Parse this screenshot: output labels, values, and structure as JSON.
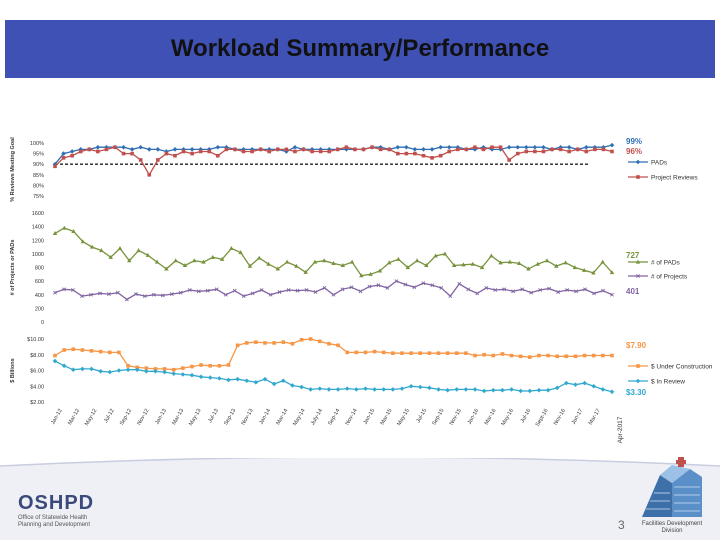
{
  "title": "Workload Summary/Performance",
  "page_number": "3",
  "logo": {
    "name": "OSHPD",
    "sub1": "Office of Statewide Health",
    "sub2": "Planning and Development"
  },
  "division": {
    "line1": "Facilities Development",
    "line2": "Division"
  },
  "colors": {
    "title_bar": "#3f51b5",
    "pads": "#2f6fb3",
    "reviews": "#c0504d",
    "num_pads": "#77933c",
    "num_projects": "#8064a2",
    "construction": "#f79646",
    "in_review": "#31a9cf",
    "goal": "#222222"
  },
  "axis": {
    "x_ticks": [
      "Jan-12",
      "Mar-12",
      "May-12",
      "Jul-12",
      "Sep-12",
      "Nov-12",
      "Jan-13",
      "Mar-13",
      "May-13",
      "Jul-13",
      "Sep-13",
      "Nov-13",
      "Jan-14",
      "Mar-14",
      "May-14",
      "July-14",
      "Sep-14",
      "Nov-14",
      "Jan-15",
      "Mar-15",
      "May-15",
      "Jul-15",
      "Sep-15",
      "Nov-15",
      "Jan-16",
      "Mar-16",
      "May-16",
      "Jul-16",
      "Sept-16",
      "Nov-16",
      "Jan-17",
      "Mar-17"
    ],
    "x_end": "Apr-2017"
  },
  "chart_data": [
    {
      "type": "line",
      "ylabel": "% Reviews Meeting Goal",
      "ylim": [
        75,
        100
      ],
      "y_ticks": [
        "100%",
        "95%",
        "90%",
        "85%",
        "80%",
        "75%"
      ],
      "goal_value": 90,
      "series": [
        {
          "name": "PADs",
          "end_label": "99%",
          "values": [
            90,
            95,
            96,
            97,
            97,
            98,
            98,
            98,
            98,
            97,
            98,
            97,
            97,
            96,
            97,
            97,
            97,
            97,
            97,
            98,
            98,
            97,
            97,
            97,
            97,
            97,
            97,
            96,
            98,
            97,
            97,
            97,
            97,
            97,
            97,
            97,
            97,
            98,
            98,
            97,
            98,
            98,
            97,
            97,
            97,
            98,
            98,
            98,
            97,
            97,
            98,
            97,
            97,
            98,
            98,
            98,
            98,
            98,
            97,
            98,
            98,
            97,
            98,
            98,
            98,
            99
          ]
        },
        {
          "name": "Project Reviews",
          "end_label": "96%",
          "values": [
            89,
            93,
            94,
            96,
            97,
            96,
            97,
            98,
            95,
            95,
            92,
            85,
            92,
            95,
            94,
            96,
            95,
            96,
            96,
            94,
            97,
            97,
            96,
            96,
            97,
            96,
            97,
            97,
            96,
            97,
            96,
            96,
            96,
            97,
            98,
            97,
            97,
            98,
            97,
            97,
            95,
            95,
            95,
            94,
            93,
            94,
            96,
            97,
            97,
            98,
            97,
            98,
            98,
            92,
            95,
            96,
            96,
            96,
            97,
            97,
            96,
            97,
            96,
            97,
            97,
            96
          ]
        }
      ]
    },
    {
      "type": "line",
      "ylabel": "# of Projects or PADs",
      "ylim": [
        0,
        1600
      ],
      "y_ticks": [
        "1600",
        "1400",
        "1200",
        "1000",
        "800",
        "600",
        "400",
        "200",
        "0"
      ],
      "series": [
        {
          "name": "# of PADs",
          "end_label": "727",
          "values": [
            1300,
            1380,
            1330,
            1180,
            1100,
            1050,
            950,
            1080,
            900,
            1050,
            980,
            880,
            780,
            900,
            830,
            900,
            880,
            950,
            920,
            1080,
            1020,
            820,
            940,
            850,
            780,
            880,
            820,
            730,
            880,
            900,
            860,
            830,
            880,
            680,
            700,
            750,
            870,
            920,
            800,
            900,
            830,
            970,
            1000,
            830,
            840,
            850,
            800,
            970,
            870,
            880,
            860,
            780,
            850,
            900,
            820,
            870,
            800,
            760,
            720,
            880,
            727
          ]
        },
        {
          "name": "# of Projects",
          "end_label": "401",
          "values": [
            430,
            480,
            470,
            380,
            400,
            420,
            410,
            430,
            330,
            410,
            380,
            400,
            390,
            410,
            430,
            470,
            450,
            460,
            480,
            400,
            460,
            380,
            420,
            470,
            400,
            440,
            470,
            460,
            470,
            440,
            500,
            400,
            480,
            510,
            450,
            520,
            540,
            500,
            600,
            550,
            510,
            570,
            540,
            500,
            380,
            560,
            480,
            420,
            500,
            470,
            480,
            450,
            480,
            430,
            470,
            490,
            440,
            470,
            450,
            480,
            420,
            460,
            401
          ]
        }
      ]
    },
    {
      "type": "line",
      "ylabel": "$ Billions",
      "ylim": [
        2,
        10
      ],
      "y_ticks": [
        "$10.00",
        "$8.00",
        "$6.00",
        "$4.00",
        "$2.00"
      ],
      "series": [
        {
          "name": "$ Under Construction",
          "end_label": "$7.90",
          "values": [
            7.9,
            8.6,
            8.7,
            8.6,
            8.5,
            8.4,
            8.3,
            8.3,
            6.6,
            6.4,
            6.3,
            6.2,
            6.2,
            6.1,
            6.3,
            6.5,
            6.7,
            6.6,
            6.6,
            6.7,
            9.2,
            9.5,
            9.6,
            9.5,
            9.5,
            9.6,
            9.4,
            9.9,
            10.0,
            9.7,
            9.4,
            9.2,
            8.3,
            8.3,
            8.3,
            8.4,
            8.3,
            8.2,
            8.2,
            8.2,
            8.2,
            8.2,
            8.2,
            8.2,
            8.2,
            8.2,
            7.9,
            8.0,
            7.9,
            8.1,
            7.9,
            7.8,
            7.7,
            7.9,
            7.9,
            7.8,
            7.8,
            7.8,
            7.9,
            7.9,
            7.9,
            7.9
          ]
        },
        {
          "name": "$ In Review",
          "end_label": "$3.30",
          "values": [
            7.2,
            6.6,
            6.1,
            6.2,
            6.2,
            5.9,
            5.8,
            6.0,
            6.1,
            6.1,
            5.9,
            5.9,
            5.8,
            5.6,
            5.5,
            5.4,
            5.2,
            5.1,
            5.0,
            4.8,
            4.9,
            4.7,
            4.5,
            4.9,
            4.3,
            4.7,
            4.1,
            3.9,
            3.6,
            3.7,
            3.6,
            3.6,
            3.7,
            3.6,
            3.7,
            3.6,
            3.6,
            3.6,
            3.7,
            4.0,
            3.9,
            3.8,
            3.6,
            3.5,
            3.6,
            3.6,
            3.6,
            3.4,
            3.5,
            3.5,
            3.6,
            3.4,
            3.4,
            3.5,
            3.5,
            3.8,
            4.4,
            4.2,
            4.4,
            4.0,
            3.6,
            3.3
          ]
        }
      ]
    }
  ]
}
